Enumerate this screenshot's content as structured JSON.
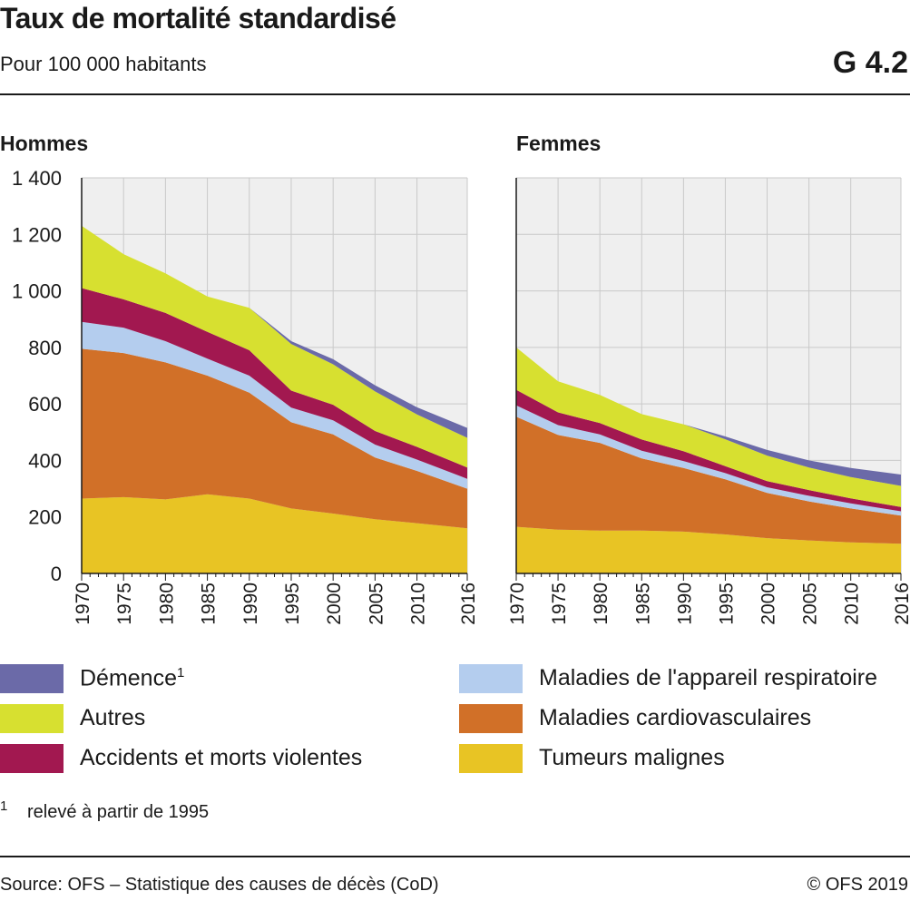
{
  "header": {
    "title": "Taux de mortalité standardisé",
    "subtitle": "Pour 100 000 habitants",
    "code": "G 4.2"
  },
  "footer": {
    "footnote_mark": "1",
    "footnote_text": "relevé à partir de 1995",
    "source": "Source: OFS – Statistique des causes de décès (CoD)",
    "copyright": "© OFS 2019"
  },
  "legend": {
    "items": [
      {
        "key": "dementia",
        "label": "Démence",
        "sup": "1",
        "color": "#6b6aa8"
      },
      {
        "key": "respiratory",
        "label": "Maladies de l'appareil respiratoire",
        "color": "#b4cdee"
      },
      {
        "key": "other",
        "label": "Autres",
        "color": "#d7e030"
      },
      {
        "key": "cardio",
        "label": "Maladies cardiovasculaires",
        "color": "#d17028"
      },
      {
        "key": "accidents",
        "label": "Accidents et morts violentes",
        "color": "#a21850"
      },
      {
        "key": "tumors",
        "label": "Tumeurs malignes",
        "color": "#e8c424"
      }
    ]
  },
  "chart_data": [
    {
      "type": "area",
      "stacked": true,
      "title": "Hommes",
      "ylim": [
        0,
        1400
      ],
      "yticks": [
        "0",
        "200",
        "400",
        "600",
        "800",
        "1 000",
        "1 200",
        "1 400"
      ],
      "xlim": [
        1970,
        2016
      ],
      "xticks": [
        "1970",
        "1975",
        "1980",
        "1985",
        "1990",
        "1995",
        "2000",
        "2005",
        "2010",
        "2016"
      ],
      "grid": true,
      "x": [
        1970,
        1975,
        1980,
        1985,
        1990,
        1995,
        2000,
        2005,
        2010,
        2016
      ],
      "series": [
        {
          "key": "tumors",
          "name": "Tumeurs malignes",
          "values": [
            265,
            270,
            262,
            280,
            265,
            230,
            212,
            192,
            178,
            160
          ]
        },
        {
          "key": "cardio",
          "name": "Maladies cardiovasculaires",
          "values": [
            530,
            510,
            485,
            420,
            375,
            305,
            280,
            218,
            185,
            140
          ]
        },
        {
          "key": "respiratory",
          "name": "Maladies de l'appareil respiratoire",
          "values": [
            95,
            90,
            75,
            60,
            60,
            52,
            50,
            46,
            40,
            35
          ]
        },
        {
          "key": "accidents",
          "name": "Accidents et morts violentes",
          "values": [
            120,
            100,
            100,
            95,
            90,
            60,
            55,
            48,
            45,
            40
          ]
        },
        {
          "key": "other",
          "name": "Autres",
          "values": [
            220,
            160,
            140,
            125,
            150,
            165,
            143,
            140,
            115,
            105
          ]
        },
        {
          "key": "dementia",
          "name": "Démence",
          "values": [
            0,
            0,
            0,
            0,
            0,
            10,
            18,
            22,
            25,
            35
          ]
        }
      ]
    },
    {
      "type": "area",
      "stacked": true,
      "title": "Femmes",
      "ylim": [
        0,
        1400
      ],
      "xlim": [
        1970,
        2016
      ],
      "xticks": [
        "1970",
        "1975",
        "1980",
        "1985",
        "1990",
        "1995",
        "2000",
        "2005",
        "2010",
        "2016"
      ],
      "grid": true,
      "x": [
        1970,
        1975,
        1980,
        1985,
        1990,
        1995,
        2000,
        2005,
        2010,
        2016
      ],
      "series": [
        {
          "key": "tumors",
          "name": "Tumeurs malignes",
          "values": [
            165,
            155,
            152,
            152,
            148,
            138,
            125,
            117,
            110,
            105
          ]
        },
        {
          "key": "cardio",
          "name": "Maladies cardiovasculaires",
          "values": [
            390,
            335,
            310,
            255,
            225,
            195,
            160,
            138,
            120,
            100
          ]
        },
        {
          "key": "respiratory",
          "name": "Maladies de l'appareil respiratoire",
          "values": [
            40,
            35,
            30,
            27,
            25,
            22,
            20,
            20,
            18,
            15
          ]
        },
        {
          "key": "accidents",
          "name": "Accidents et morts violentes",
          "values": [
            55,
            45,
            40,
            40,
            35,
            25,
            22,
            20,
            18,
            15
          ]
        },
        {
          "key": "other",
          "name": "Autres",
          "values": [
            150,
            110,
            100,
            90,
            95,
            95,
            90,
            80,
            75,
            75
          ]
        },
        {
          "key": "dementia",
          "name": "Démence",
          "values": [
            0,
            0,
            0,
            0,
            0,
            10,
            20,
            25,
            32,
            40
          ]
        }
      ]
    }
  ]
}
